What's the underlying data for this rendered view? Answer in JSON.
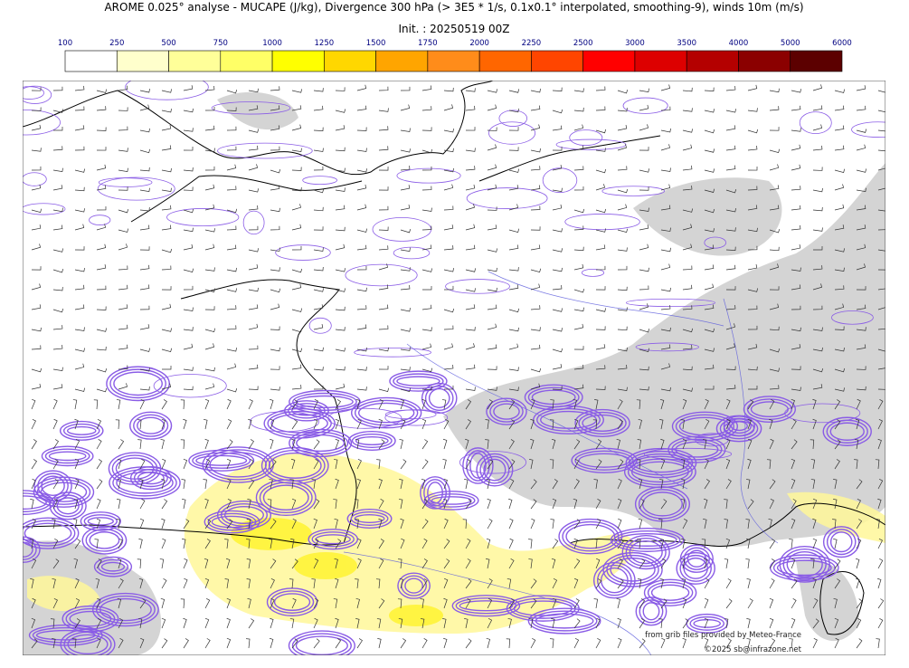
{
  "header": {
    "title": "AROME 0.025° analyse - MUCAPE (J/kg), Divergence 300 hPa (> 3E5 * 1/s, 0.1x0.1° interpolated, smoothing-9), winds 10m (m/s)",
    "init": "Init. : 20250519 00Z"
  },
  "colorbar": {
    "levels": [
      100,
      250,
      500,
      750,
      1000,
      1250,
      1500,
      1750,
      2000,
      2250,
      2500,
      3000,
      3500,
      4000,
      5000,
      6000
    ],
    "colors": [
      "#ffffff",
      "#ffffcc",
      "#ffff99",
      "#ffff66",
      "#ffff00",
      "#ffd700",
      "#ffa500",
      "#ff8c1a",
      "#ff6600",
      "#ff4500",
      "#ff0000",
      "#dd0000",
      "#b40000",
      "#8b0000",
      "#5c0000"
    ]
  },
  "credits": {
    "source": "from grib files provided by Meteo-France",
    "copyright": "©2025 sb@infrazone.net"
  }
}
